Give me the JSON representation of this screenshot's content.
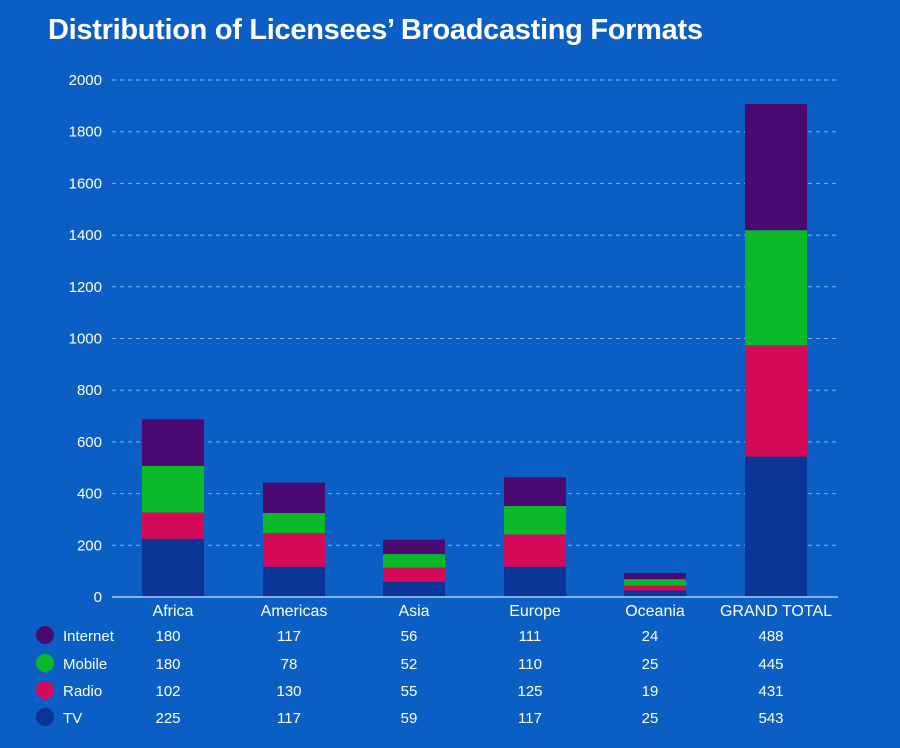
{
  "chart_data": {
    "type": "bar",
    "stacked": true,
    "title": "Distribution of Licensees’ Broadcasting Formats",
    "xlabel": "",
    "ylabel": "",
    "ylim": [
      0,
      2000
    ],
    "yticks": [
      0,
      200,
      400,
      600,
      800,
      1000,
      1200,
      1400,
      1600,
      1800,
      2000
    ],
    "grid": true,
    "legend": "bottom-left table",
    "categories": [
      "Africa",
      "Americas",
      "Asia",
      "Europe",
      "Oceania",
      "GRAND TOTAL"
    ],
    "series": [
      {
        "name": "TV",
        "color": "#0a3597",
        "values": [
          225,
          117,
          59,
          117,
          25,
          543
        ]
      },
      {
        "name": "Radio",
        "color": "#d4095a",
        "values": [
          102,
          130,
          55,
          125,
          19,
          431
        ]
      },
      {
        "name": "Mobile",
        "color": "#0ab92a",
        "values": [
          180,
          78,
          52,
          110,
          25,
          445
        ]
      },
      {
        "name": "Internet",
        "color": "#4a0a72",
        "values": [
          180,
          117,
          56,
          111,
          24,
          488
        ]
      }
    ],
    "table_order": [
      "Internet",
      "Mobile",
      "Radio",
      "TV"
    ]
  },
  "colors": {
    "background": "#0a5ec4",
    "grid": "#7fb2ea",
    "axis": "#a9cdf2",
    "text": "#ffffff"
  }
}
